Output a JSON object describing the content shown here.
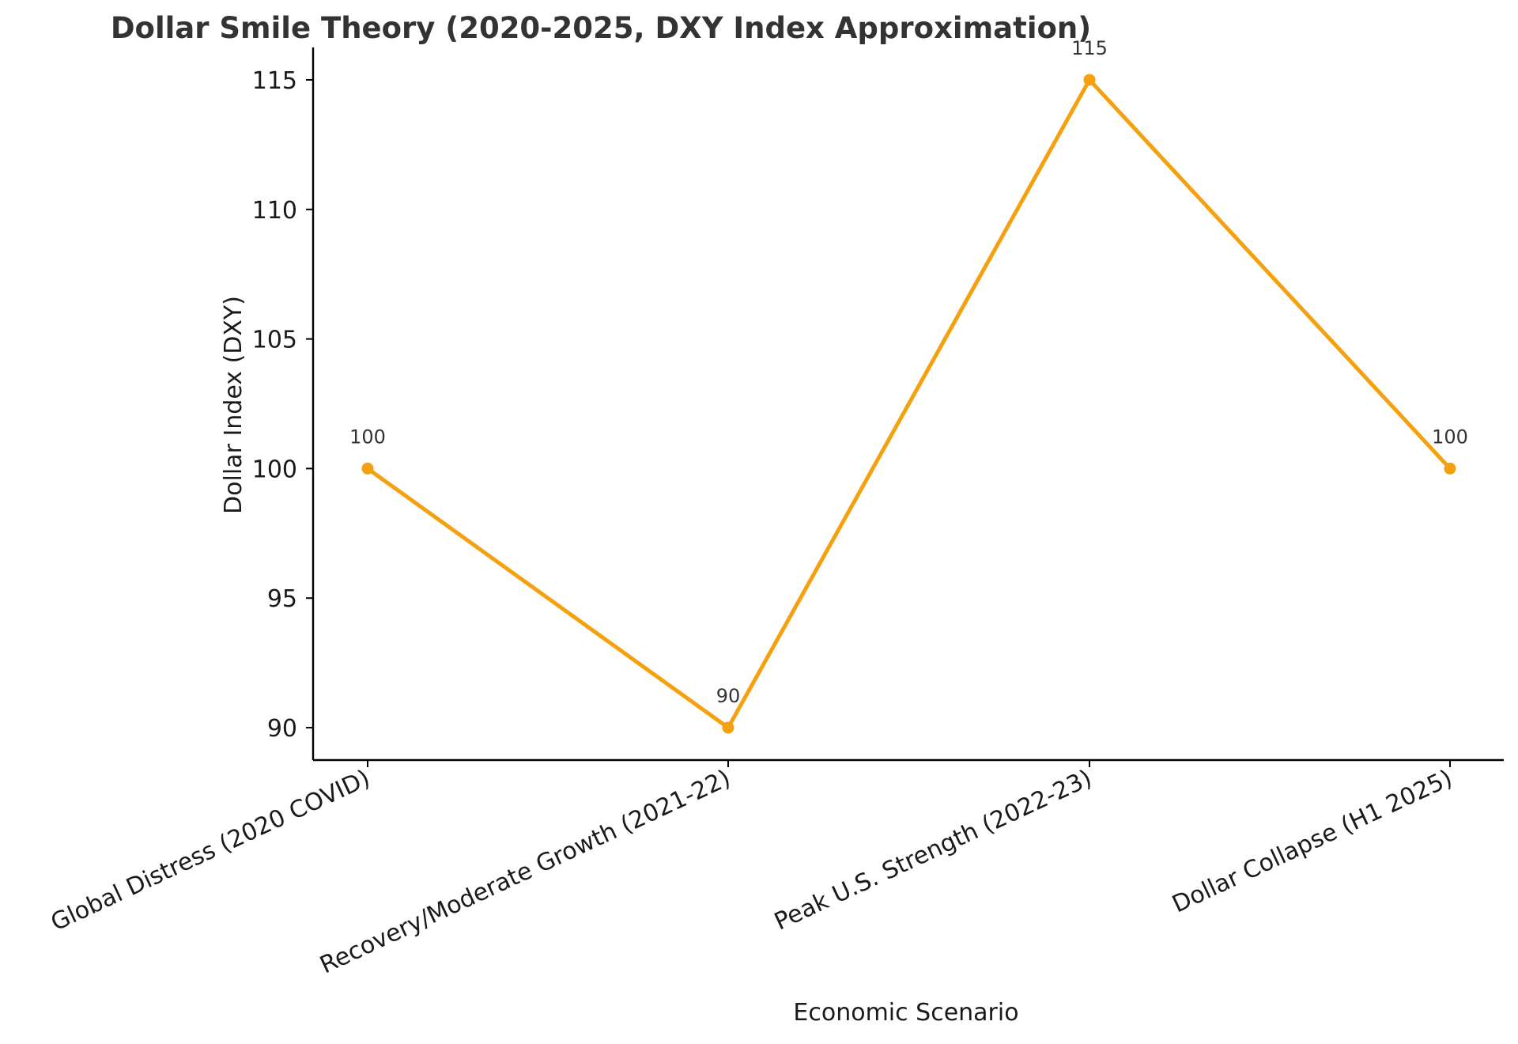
{
  "chart_data": {
    "type": "line",
    "title": "Dollar Smile Theory (2020-2025, DXY Index Approximation)",
    "xlabel": "Economic Scenario",
    "ylabel": "Dollar Index (DXY)",
    "categories": [
      "Global Distress (2020 COVID)",
      "Recovery/Moderate Growth (2021-22)",
      "Peak U.S. Strength (2022-23)",
      "Dollar Collapse (H1 2025)"
    ],
    "series": [
      {
        "name": "DXY",
        "values": [
          100,
          90,
          115,
          100
        ],
        "data_labels": [
          "100",
          "90",
          "115",
          "100"
        ]
      }
    ],
    "ylim": [
      88.75,
      116.25
    ],
    "yticks": [
      90,
      95,
      100,
      105,
      110,
      115
    ],
    "ytick_labels": [
      "90",
      "95",
      "100",
      "105",
      "110",
      "115"
    ],
    "grid": false,
    "line_color": "#f5a10f",
    "axis_color": "#000000"
  }
}
